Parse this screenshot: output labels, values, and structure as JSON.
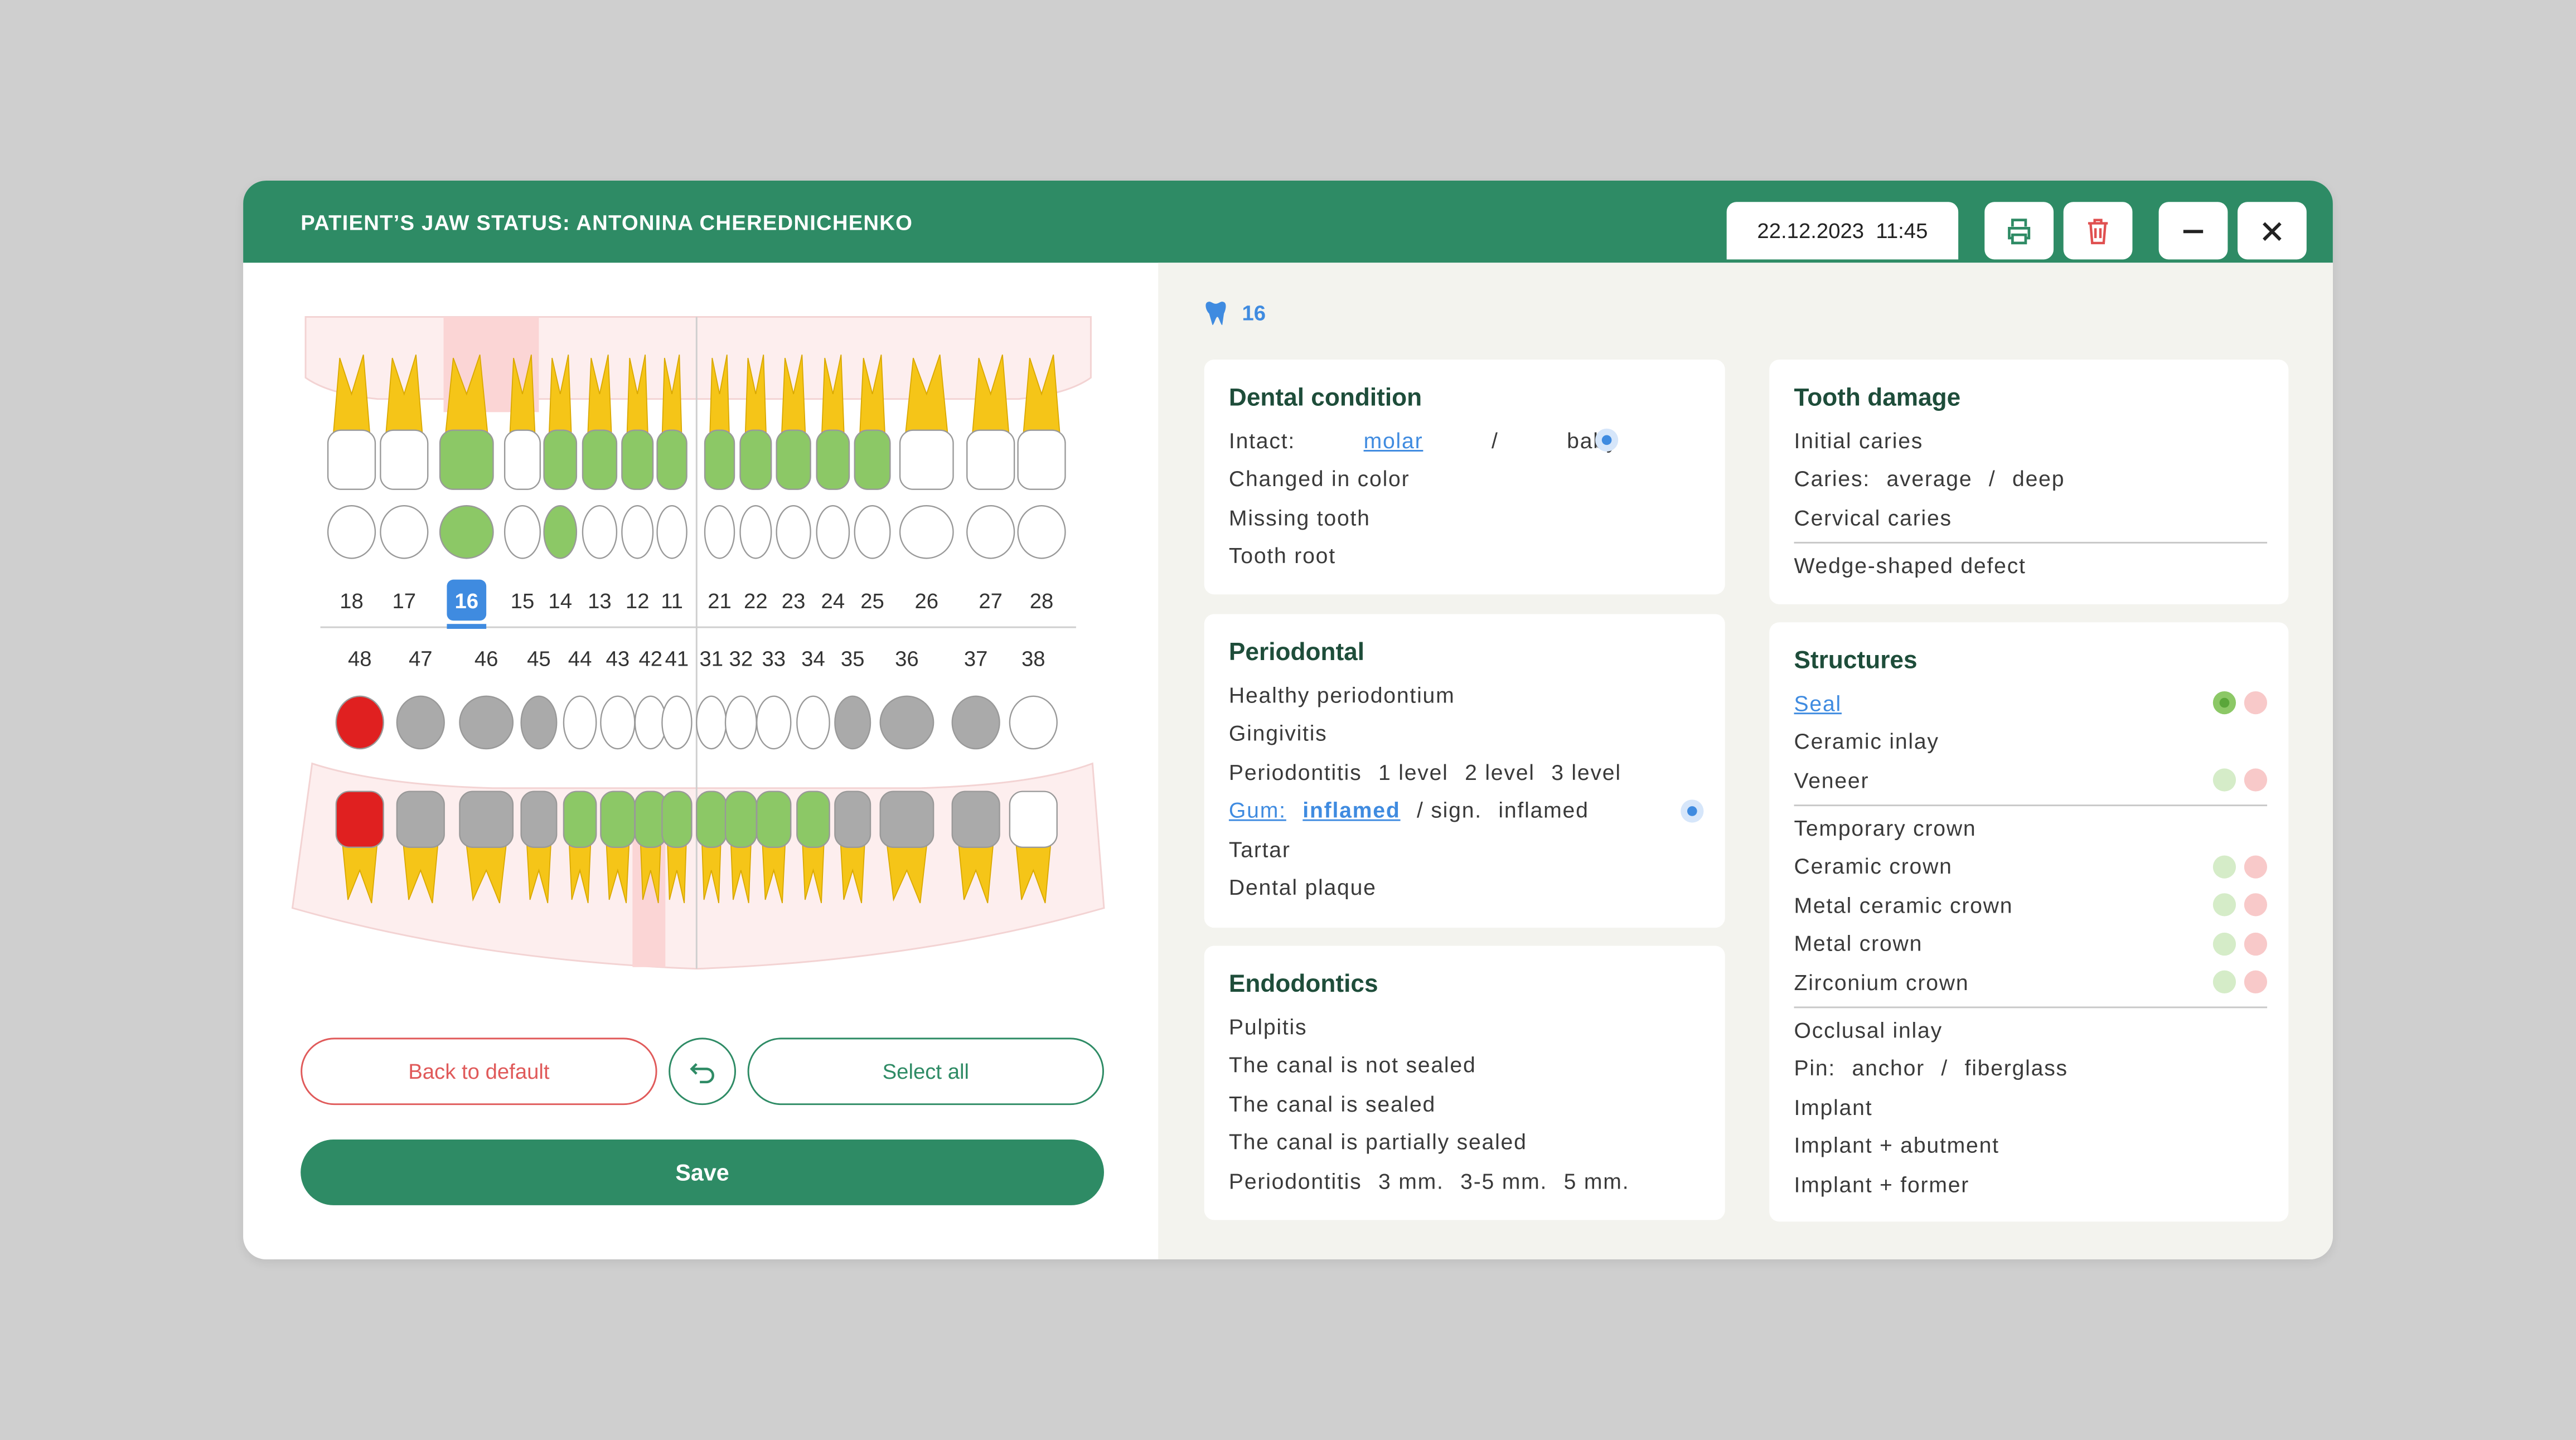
{
  "header": {
    "title": "PATIENT’S JAW STATUS: ANTONINA CHEREDNICHENKO",
    "datetime": "22.12.2023  11:45"
  },
  "jaw": {
    "upper_numbers": [
      "18",
      "17",
      "16",
      "15",
      "14",
      "13",
      "12",
      "11",
      "21",
      "22",
      "23",
      "24",
      "25",
      "26",
      "27",
      "28"
    ],
    "lower_numbers": [
      "48",
      "47",
      "46",
      "45",
      "44",
      "43",
      "42",
      "41",
      "31",
      "32",
      "33",
      "34",
      "35",
      "36",
      "37",
      "38"
    ]
  },
  "buttons": {
    "back": "Back to default",
    "select_all": "Select all",
    "save": "Save"
  },
  "selected_tooth": "16",
  "cards": [
    {
      "title": "Dental condition",
      "rows": [
        [
          "Intact:",
          "molar",
          "/",
          "baby"
        ],
        [
          "Changed in color"
        ],
        [
          "Missing tooth"
        ],
        [
          "Tooth root"
        ]
      ]
    },
    {
      "title": "Periodontal",
      "rows": [
        [
          "Healthy periodontium"
        ],
        [
          "Gingivitis"
        ],
        [
          "Periodontitis",
          "1 level",
          "2 level",
          "3 level"
        ],
        [
          "Gum:",
          "inflamed",
          "/ sign.",
          "inflamed"
        ],
        [
          "Tartar"
        ],
        [
          "Dental plaque"
        ]
      ]
    },
    {
      "title": "Endodontics",
      "rows": [
        [
          "Pulpitis"
        ],
        [
          "The canal is not sealed"
        ],
        [
          "The canal is sealed"
        ],
        [
          "The canal is partially sealed"
        ],
        [
          "Periodontitis",
          "3 mm.",
          "3-5 mm.",
          "5 mm."
        ]
      ]
    },
    {
      "title": "Tooth damage",
      "rows": [
        [
          "Initial caries"
        ],
        [
          "Caries:",
          "average",
          "/",
          "deep"
        ],
        [
          "Cervical caries"
        ],
        [
          "Wedge-shaped defect"
        ]
      ]
    },
    {
      "title": "Structures",
      "rows": [
        [
          "Seal"
        ],
        [
          "Ceramic inlay"
        ],
        [
          "Veneer"
        ],
        [
          "Temporary crown"
        ],
        [
          "Ceramic crown"
        ],
        [
          "Metal ceramic crown"
        ],
        [
          "Metal crown"
        ],
        [
          "Zirconium crown"
        ],
        [
          "Occlusal inlay"
        ],
        [
          "Pin:",
          "anchor",
          "/",
          "fiberglass"
        ],
        [
          "Implant"
        ],
        [
          "Implant + abutment"
        ],
        [
          "Implant + former"
        ]
      ]
    }
  ]
}
